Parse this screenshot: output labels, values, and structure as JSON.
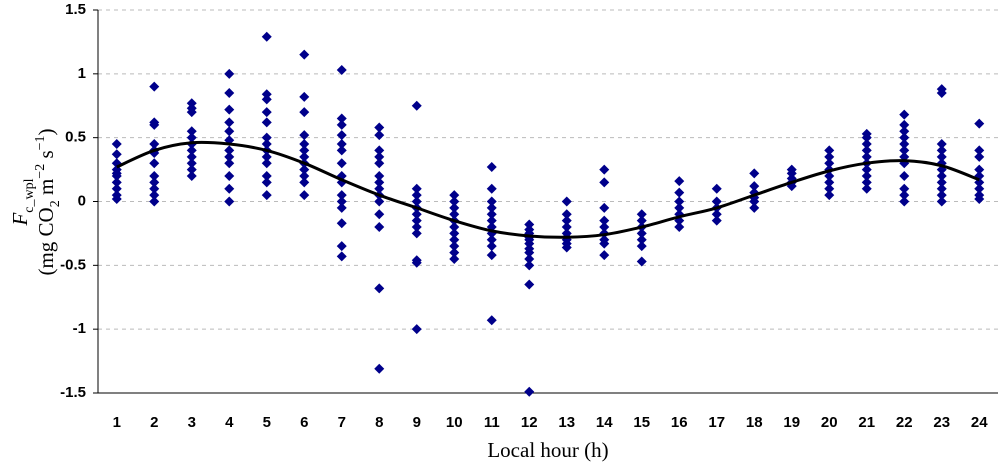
{
  "chart_data": {
    "type": "scatter",
    "x_label": "Local hour (h)",
    "y_label": [
      [
        {
          "text": "F",
          "italic": true
        },
        {
          "text": "c_wpl",
          "sub": true
        }
      ],
      [
        {
          "text": "(mg CO"
        },
        {
          "text": "2",
          "sub": true
        },
        {
          "text": " m"
        },
        {
          "text": "−2",
          "sup": true
        },
        {
          "text": " s"
        },
        {
          "text": "−1",
          "sup": true
        },
        {
          "text": ")"
        }
      ]
    ],
    "xlim": [
      0.5,
      24.5
    ],
    "xticks": [
      1,
      2,
      3,
      4,
      5,
      6,
      7,
      8,
      9,
      10,
      11,
      12,
      13,
      14,
      15,
      16,
      17,
      18,
      19,
      20,
      21,
      22,
      23,
      24
    ],
    "ylim": [
      -1.5,
      1.5
    ],
    "yticks": [
      -1.5,
      -1,
      -0.5,
      0,
      0.5,
      1,
      1.5
    ],
    "grid": true,
    "scatter": {
      "color": "#00008b",
      "marker": "diamond",
      "groups": [
        {
          "x": 1,
          "values": [
            0.45,
            0.37,
            0.3,
            0.25,
            0.22,
            0.2,
            0.15,
            0.1,
            0.05,
            0.02
          ]
        },
        {
          "x": 2,
          "values": [
            0.9,
            0.62,
            0.6,
            0.45,
            0.4,
            0.38,
            0.3,
            0.2,
            0.15,
            0.1,
            0.05,
            0.0
          ]
        },
        {
          "x": 3,
          "values": [
            0.77,
            0.73,
            0.7,
            0.55,
            0.5,
            0.45,
            0.4,
            0.35,
            0.3,
            0.25,
            0.2
          ]
        },
        {
          "x": 4,
          "values": [
            1.0,
            0.85,
            0.72,
            0.62,
            0.55,
            0.48,
            0.4,
            0.35,
            0.3,
            0.2,
            0.1,
            0.0
          ]
        },
        {
          "x": 5,
          "values": [
            1.29,
            0.84,
            0.8,
            0.7,
            0.62,
            0.5,
            0.45,
            0.4,
            0.35,
            0.3,
            0.2,
            0.15,
            0.05
          ]
        },
        {
          "x": 6,
          "values": [
            1.15,
            0.82,
            0.7,
            0.52,
            0.45,
            0.4,
            0.35,
            0.3,
            0.25,
            0.2,
            0.15,
            0.05
          ]
        },
        {
          "x": 7,
          "values": [
            1.03,
            0.65,
            0.6,
            0.52,
            0.45,
            0.4,
            0.3,
            0.2,
            0.15,
            0.05,
            0.0,
            -0.05,
            -0.17,
            -0.35,
            -0.43
          ]
        },
        {
          "x": 8,
          "values": [
            0.58,
            0.52,
            0.4,
            0.35,
            0.3,
            0.2,
            0.15,
            0.1,
            0.05,
            0.0,
            -0.1,
            -0.2,
            -0.68,
            -1.31
          ]
        },
        {
          "x": 9,
          "values": [
            0.75,
            0.1,
            0.05,
            0.0,
            -0.05,
            -0.1,
            -0.15,
            -0.2,
            -0.25,
            -0.46,
            -0.48,
            -1.0
          ]
        },
        {
          "x": 10,
          "values": [
            0.05,
            0.0,
            -0.05,
            -0.1,
            -0.15,
            -0.2,
            -0.25,
            -0.3,
            -0.35,
            -0.4,
            -0.45
          ]
        },
        {
          "x": 11,
          "values": [
            0.27,
            0.1,
            0.0,
            -0.05,
            -0.1,
            -0.15,
            -0.2,
            -0.25,
            -0.3,
            -0.35,
            -0.42,
            -0.93
          ]
        },
        {
          "x": 12,
          "values": [
            -0.18,
            -0.22,
            -0.25,
            -0.28,
            -0.3,
            -0.33,
            -0.37,
            -0.4,
            -0.45,
            -0.5,
            -0.65,
            -1.49
          ]
        },
        {
          "x": 13,
          "values": [
            0.0,
            -0.1,
            -0.15,
            -0.2,
            -0.25,
            -0.28,
            -0.3,
            -0.33,
            -0.36
          ]
        },
        {
          "x": 14,
          "values": [
            0.25,
            0.15,
            -0.05,
            -0.15,
            -0.2,
            -0.25,
            -0.3,
            -0.33,
            -0.42
          ]
        },
        {
          "x": 15,
          "values": [
            -0.1,
            -0.15,
            -0.2,
            -0.25,
            -0.3,
            -0.35,
            -0.47
          ]
        },
        {
          "x": 16,
          "values": [
            0.16,
            0.07,
            0.0,
            -0.05,
            -0.1,
            -0.15,
            -0.2
          ]
        },
        {
          "x": 17,
          "values": [
            0.1,
            0.0,
            -0.05,
            -0.1,
            -0.15
          ]
        },
        {
          "x": 18,
          "values": [
            0.22,
            0.12,
            0.07,
            0.03,
            0.0,
            -0.05
          ]
        },
        {
          "x": 19,
          "values": [
            0.25,
            0.22,
            0.18,
            0.15,
            0.12
          ]
        },
        {
          "x": 20,
          "values": [
            0.4,
            0.35,
            0.3,
            0.25,
            0.2,
            0.15,
            0.1,
            0.05
          ]
        },
        {
          "x": 21,
          "values": [
            0.53,
            0.5,
            0.45,
            0.4,
            0.35,
            0.3,
            0.25,
            0.2,
            0.15,
            0.1
          ]
        },
        {
          "x": 22,
          "values": [
            0.68,
            0.6,
            0.55,
            0.5,
            0.45,
            0.4,
            0.35,
            0.3,
            0.2,
            0.1,
            0.05,
            0.0
          ]
        },
        {
          "x": 23,
          "values": [
            0.88,
            0.85,
            0.45,
            0.4,
            0.35,
            0.3,
            0.25,
            0.2,
            0.15,
            0.1,
            0.05,
            0.0
          ]
        },
        {
          "x": 24,
          "values": [
            0.61,
            0.4,
            0.35,
            0.25,
            0.2,
            0.15,
            0.1,
            0.05,
            0.02
          ]
        }
      ]
    },
    "line": {
      "color": "#000000",
      "x": [
        1,
        2,
        3,
        4,
        5,
        6,
        7,
        8,
        9,
        10,
        11,
        12,
        13,
        14,
        15,
        16,
        17,
        18,
        19,
        20,
        21,
        22,
        23,
        24
      ],
      "values": [
        0.27,
        0.4,
        0.46,
        0.45,
        0.4,
        0.3,
        0.17,
        0.05,
        -0.05,
        -0.15,
        -0.23,
        -0.27,
        -0.28,
        -0.26,
        -0.2,
        -0.12,
        -0.05,
        0.05,
        0.15,
        0.24,
        0.3,
        0.32,
        0.28,
        0.17
      ]
    }
  }
}
